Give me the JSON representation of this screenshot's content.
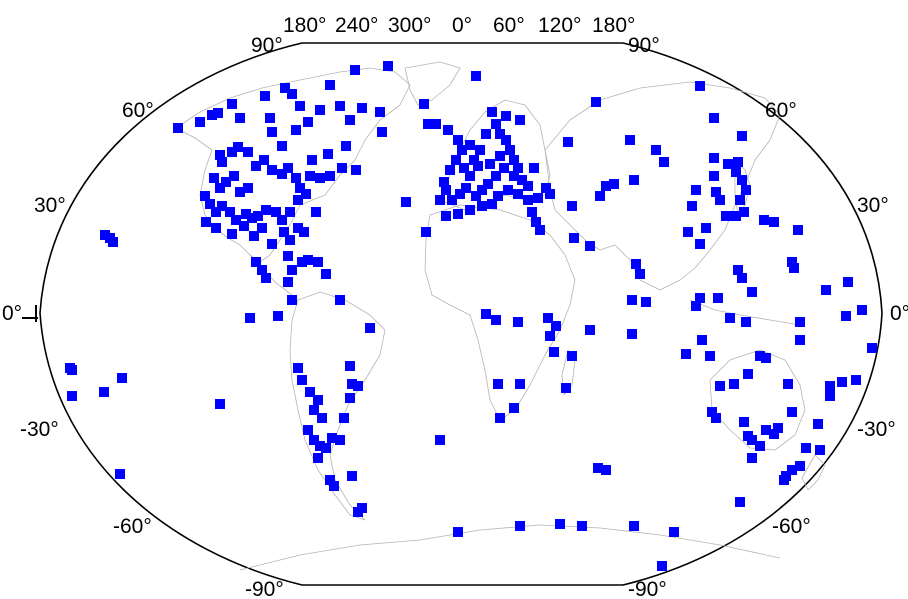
{
  "map": {
    "projection": "Winkel-like (curved top/bottom edges)",
    "top_lon_labels": [
      "180°",
      "240°",
      "300°",
      "0°",
      "60°",
      "120°",
      "180°"
    ],
    "left_lat_labels": [
      "90°",
      "60°",
      "30°",
      "0°",
      "-30°",
      "-60°",
      "-90°"
    ],
    "right_lat_labels": [
      "90°",
      "60°",
      "30°",
      "0°",
      "-30°",
      "-60°",
      "-90°"
    ],
    "station_color": "#0000ff",
    "frame_color": "#000000",
    "coast_color": "#b5b5b5"
  }
}
